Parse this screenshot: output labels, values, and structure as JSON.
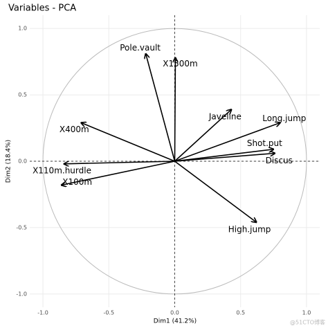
{
  "chart_data": {
    "type": "arrow",
    "title": "Variables - PCA",
    "xlabel": "Dim1 (41.2%)",
    "ylabel": "Dim2 (18.4%)",
    "categories": [
      "Pole.vault",
      "X1500m",
      "Javeline",
      "Long.jump",
      "Shot.put",
      "Discus",
      "High.jump",
      "X400m",
      "X110m.hurdle",
      "X100m"
    ],
    "x": [
      -0.22,
      0.005,
      0.43,
      0.8,
      0.75,
      0.76,
      0.62,
      -0.71,
      -0.84,
      -0.86
    ],
    "y": [
      0.81,
      0.78,
      0.39,
      0.29,
      0.09,
      0.06,
      -0.46,
      0.29,
      -0.02,
      -0.18
    ],
    "color": "#000000",
    "xlim": [
      -1.1,
      1.1
    ],
    "ylim": [
      -1.1,
      1.1
    ],
    "xticks": [
      {
        "value": -1,
        "label": "-1.0"
      },
      -0.5,
      {
        "value": 0,
        "label": "0.0"
      },
      0.5,
      {
        "value": 1,
        "label": "1.0"
      }
    ],
    "yticks": [
      {
        "value": -1,
        "label": "-1.0"
      },
      -0.5,
      {
        "value": 0,
        "label": "0.0"
      },
      0.5,
      {
        "value": 1,
        "label": "1.0"
      }
    ],
    "grid": true,
    "watermark": "@51CTO博客"
  }
}
